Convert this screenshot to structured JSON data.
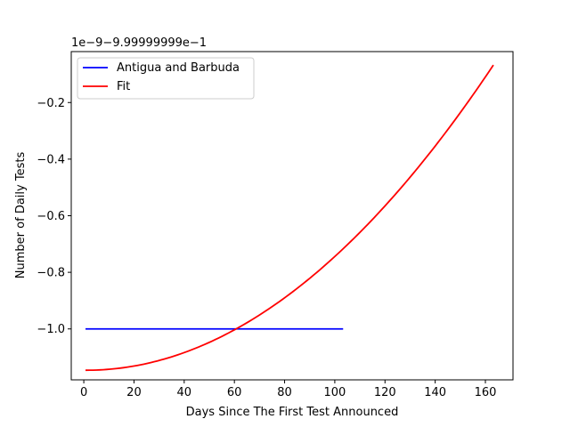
{
  "chart_data": {
    "type": "line",
    "title": "",
    "xlabel": "Days Since The First Test Announced",
    "ylabel": "Number of Daily Tests",
    "offset_text": "1e−9−9.99999999e−1",
    "xlim": [
      -5,
      171
    ],
    "ylim": [
      -1.18,
      -0.02
    ],
    "x_ticks": [
      0,
      20,
      40,
      60,
      80,
      100,
      120,
      140,
      160
    ],
    "x_tick_labels": [
      "0",
      "20",
      "40",
      "60",
      "80",
      "100",
      "120",
      "140",
      "160"
    ],
    "y_ticks": [
      -1.0,
      -0.8,
      -0.6,
      -0.4,
      -0.2
    ],
    "y_tick_labels": [
      "−1.0",
      "−0.8",
      "−0.6",
      "−0.4",
      "−0.2"
    ],
    "grid": false,
    "legend_position": "top-left",
    "series": [
      {
        "name": "Antigua and Barbuda",
        "color": "#0000ff",
        "kind": "segment",
        "x": [
          1,
          103
        ],
        "y": [
          -1.0,
          -1.0
        ]
      },
      {
        "name": "Fit",
        "color": "#ff0000",
        "kind": "quadratic",
        "x_range": [
          1,
          163
        ],
        "coefficients": {
          "a": 4.1e-05,
          "h": 1,
          "k": -1.146
        }
      }
    ]
  }
}
